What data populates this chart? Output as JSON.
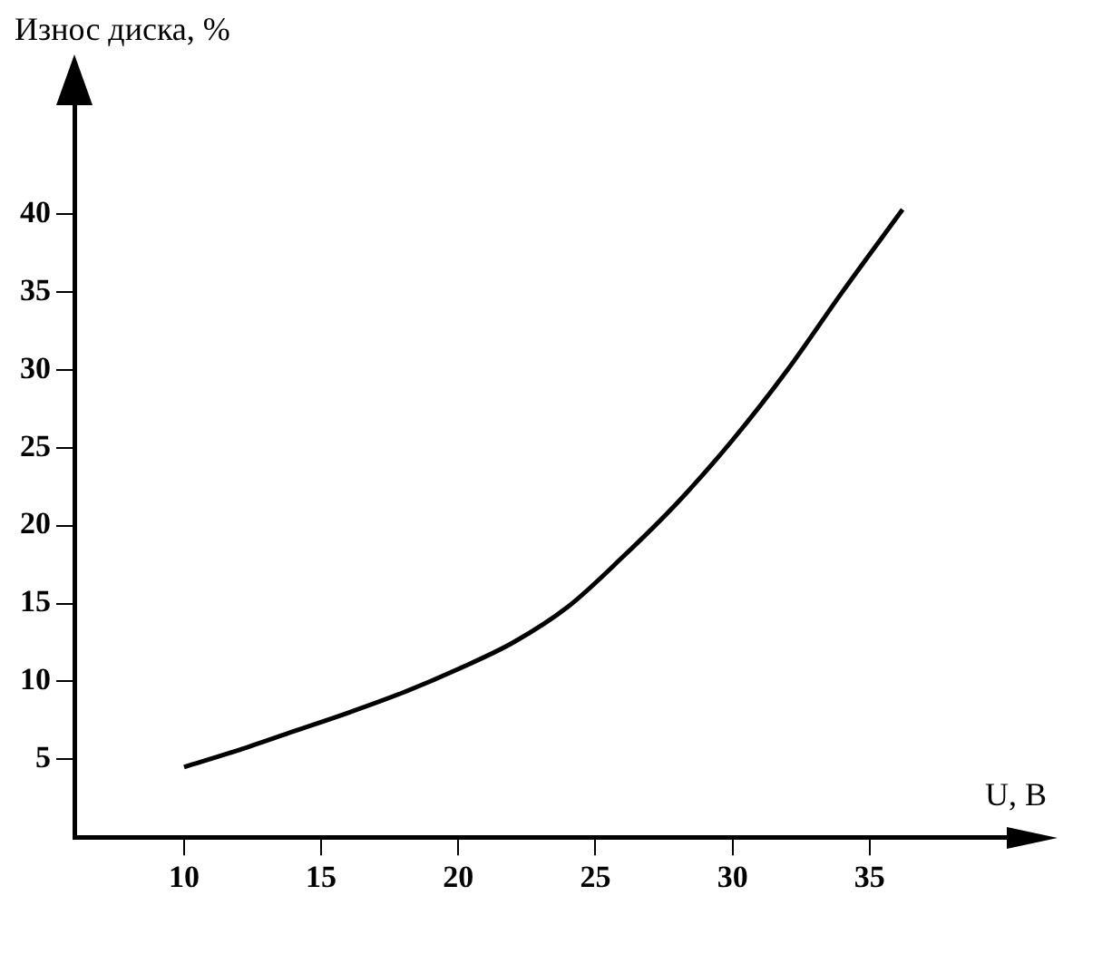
{
  "chart_data": {
    "type": "line",
    "xlabel": "U, B",
    "ylabel": "Износ диска, %",
    "xlim": [
      6,
      40
    ],
    "ylim": [
      0,
      47
    ],
    "xticks": [
      10,
      15,
      20,
      25,
      30,
      35
    ],
    "yticks": [
      5,
      10,
      15,
      20,
      25,
      30,
      35,
      40
    ],
    "grid": false,
    "legend": false,
    "series": [
      {
        "color": "#000000",
        "x": [
          10,
          12,
          14,
          16,
          18,
          20,
          22,
          24,
          26,
          28,
          30,
          32,
          34,
          36.2
        ],
        "values": [
          4.5,
          5.6,
          6.8,
          8.0,
          9.3,
          10.8,
          12.5,
          14.8,
          18.0,
          21.5,
          25.5,
          30,
          35,
          40.3
        ]
      }
    ]
  }
}
